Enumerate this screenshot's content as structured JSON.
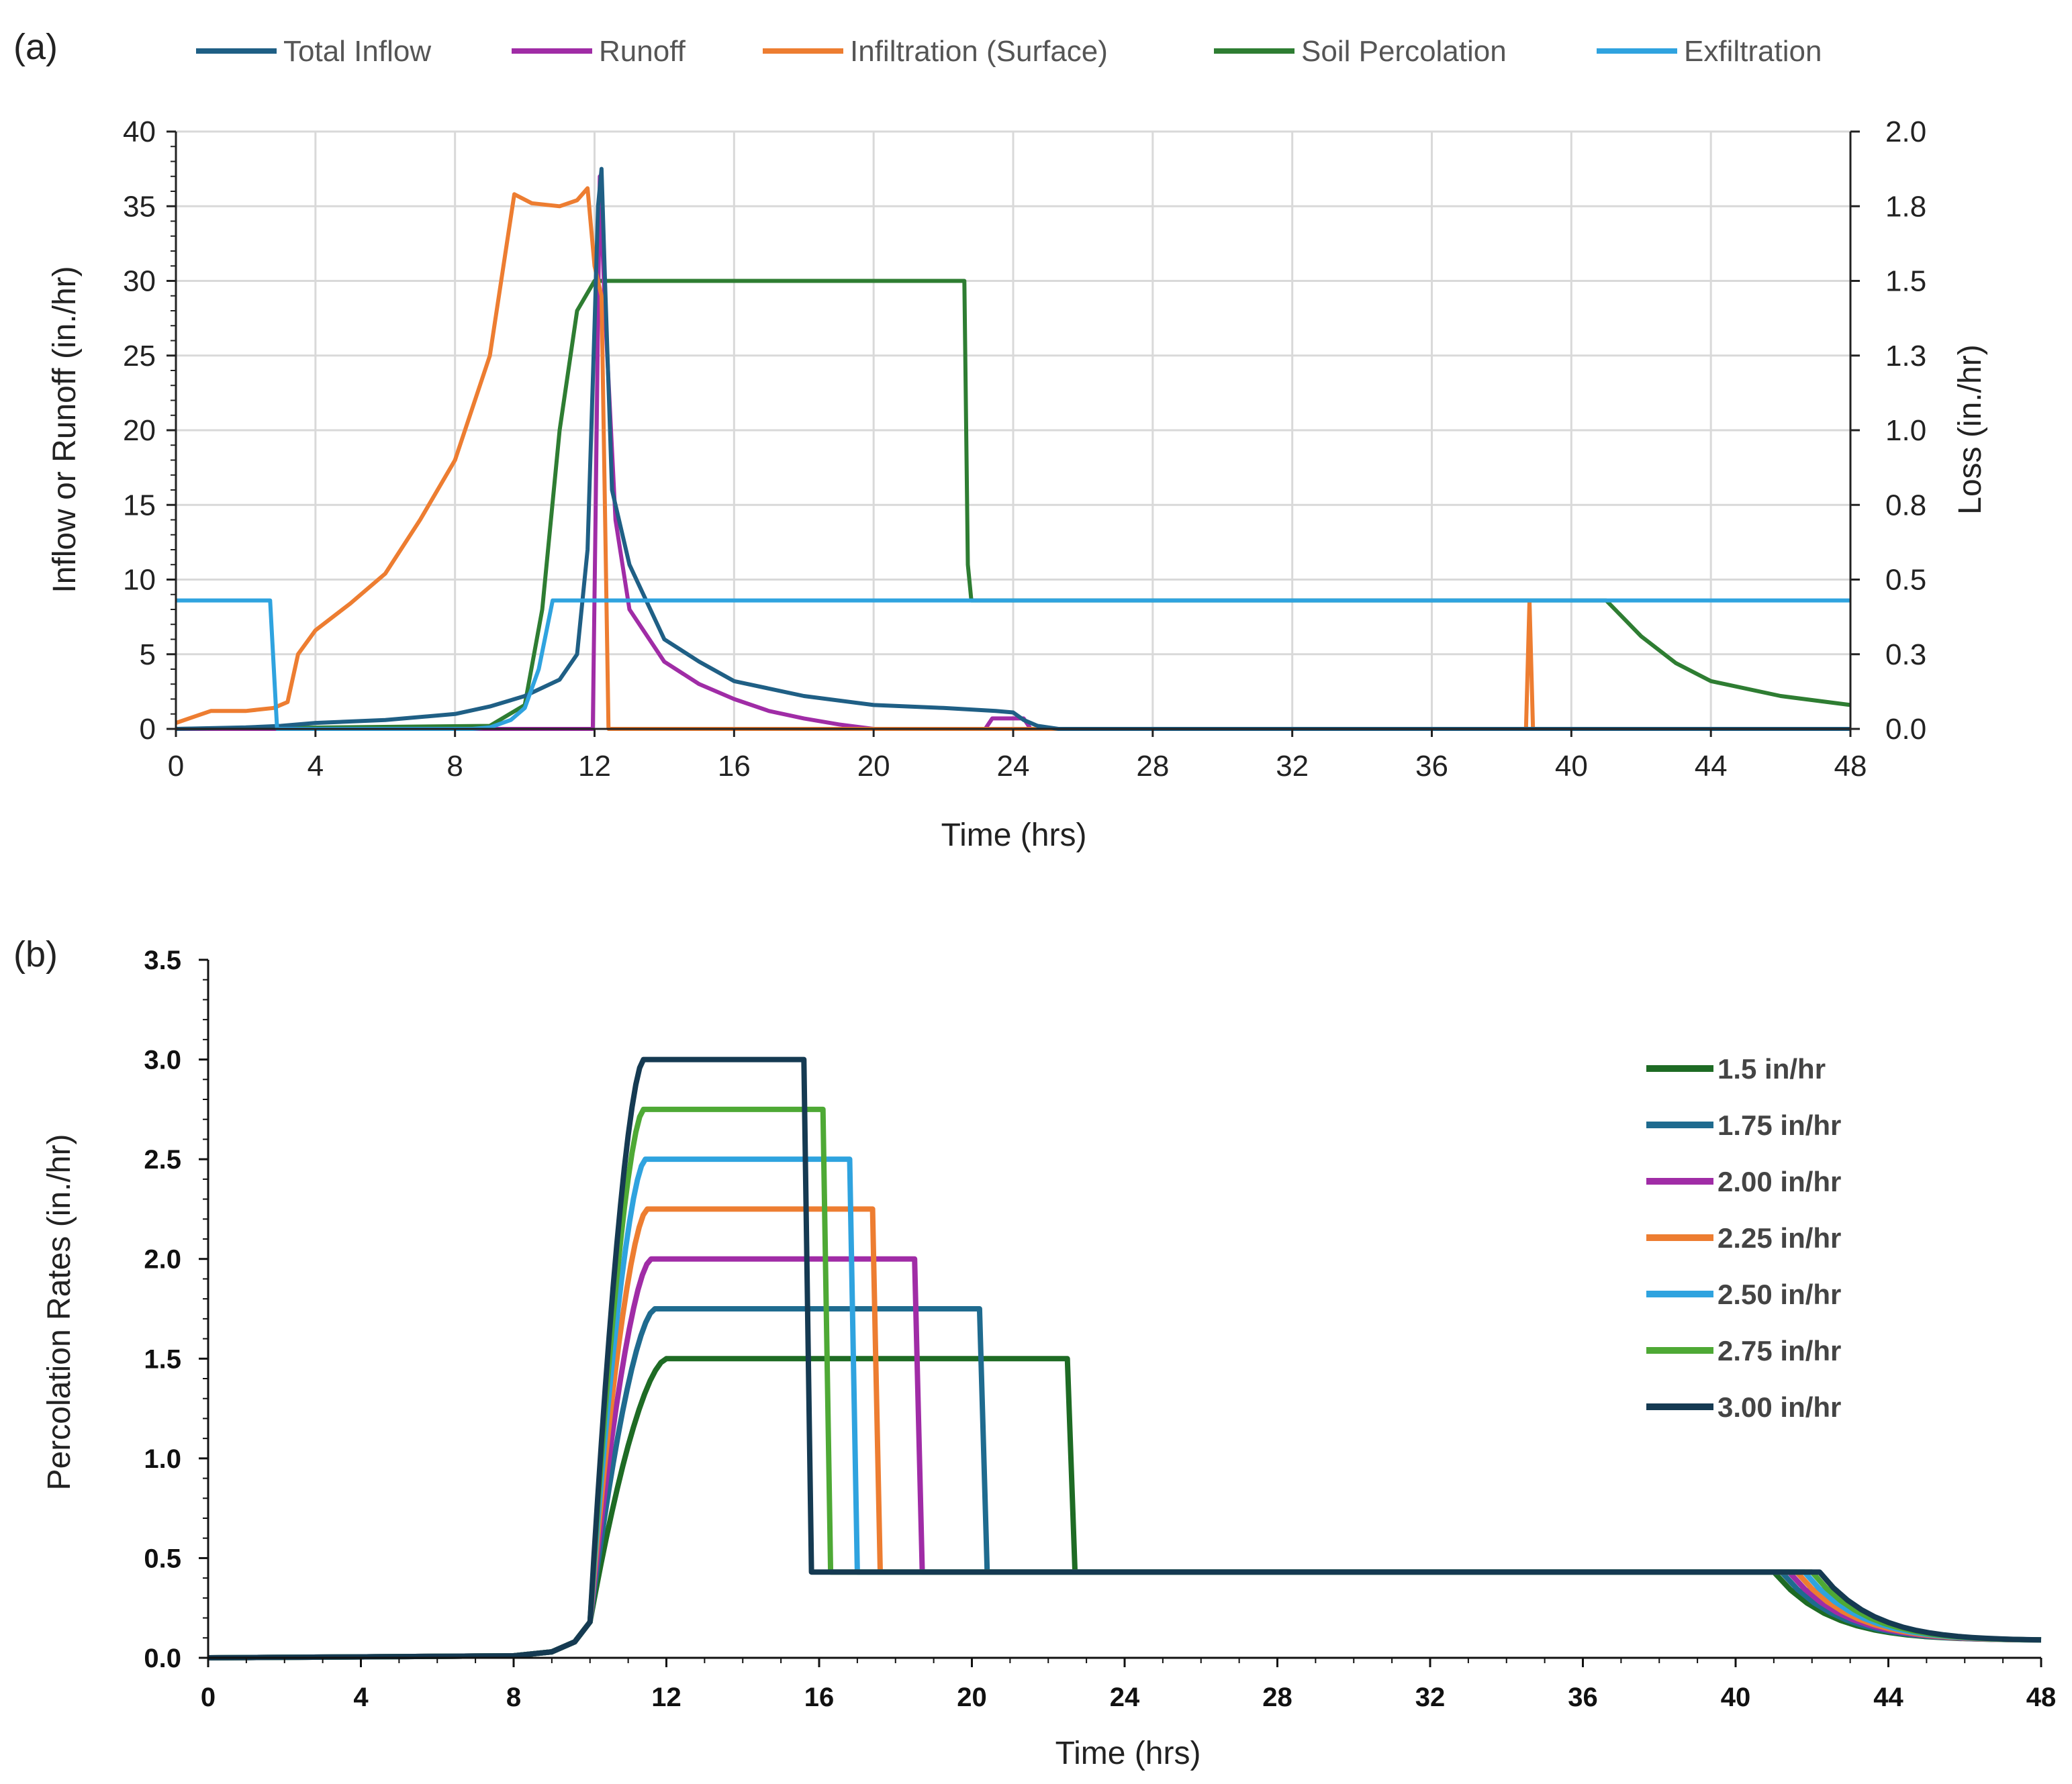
{
  "chart_data": [
    {
      "panel_label": "(a)",
      "type": "line",
      "xlabel": "Time (hrs)",
      "ylabel": "Inflow or Runoff (in./hr)",
      "y2label": "Loss (in./hr)",
      "xlim": [
        0,
        48
      ],
      "ylim": [
        0,
        40
      ],
      "y2lim": [
        0,
        2.0
      ],
      "grid": true,
      "legend_position": "top",
      "x_ticks": [
        "0",
        "4",
        "8",
        "12",
        "16",
        "20",
        "24",
        "28",
        "32",
        "36",
        "40",
        "44",
        "48"
      ],
      "y_ticks": [
        "0",
        "5",
        "10",
        "15",
        "20",
        "25",
        "30",
        "35",
        "40"
      ],
      "y2_ticks": [
        "0.0",
        "0.3",
        "0.5",
        "0.8",
        "1.0",
        "1.3",
        "1.5",
        "1.8",
        "2.0"
      ],
      "series": [
        {
          "name": "Total Inflow",
          "color": "#1f5f85",
          "axis": "left",
          "points": [
            [
              0,
              0
            ],
            [
              2,
              0.1
            ],
            [
              3,
              0.2
            ],
            [
              4,
              0.4
            ],
            [
              6,
              0.6
            ],
            [
              8,
              1.0
            ],
            [
              9,
              1.5
            ],
            [
              10,
              2.2
            ],
            [
              11,
              3.3
            ],
            [
              11.5,
              5.0
            ],
            [
              11.8,
              12
            ],
            [
              12,
              27
            ],
            [
              12.1,
              35
            ],
            [
              12.2,
              37.5
            ],
            [
              12.3,
              30
            ],
            [
              12.5,
              16
            ],
            [
              13,
              11
            ],
            [
              14,
              6
            ],
            [
              15,
              4.5
            ],
            [
              16,
              3.2
            ],
            [
              18,
              2.2
            ],
            [
              20,
              1.6
            ],
            [
              22,
              1.4
            ],
            [
              23.5,
              1.2
            ],
            [
              24,
              1.1
            ],
            [
              24.3,
              0.6
            ],
            [
              24.7,
              0.2
            ],
            [
              25.3,
              0
            ],
            [
              48,
              0
            ]
          ]
        },
        {
          "name": "Runoff",
          "color": "#a02ca6",
          "axis": "left",
          "points": [
            [
              0,
              0
            ],
            [
              11.95,
              0
            ],
            [
              12.05,
              18
            ],
            [
              12.15,
              37
            ],
            [
              12.3,
              28
            ],
            [
              12.6,
              14
            ],
            [
              13,
              8
            ],
            [
              14,
              4.5
            ],
            [
              15,
              3
            ],
            [
              16,
              2
            ],
            [
              17,
              1.2
            ],
            [
              18,
              0.7
            ],
            [
              19,
              0.3
            ],
            [
              20,
              0
            ],
            [
              23.2,
              0
            ],
            [
              23.4,
              0.7
            ],
            [
              24.3,
              0.7
            ],
            [
              24.5,
              0
            ],
            [
              48,
              0
            ]
          ]
        },
        {
          "name": "Infiltration (Surface)",
          "color": "#ed7d31",
          "axis": "right",
          "points": [
            [
              0,
              0.02
            ],
            [
              0.5,
              0.04
            ],
            [
              1,
              0.06
            ],
            [
              2,
              0.06
            ],
            [
              2.8,
              0.07
            ],
            [
              3.2,
              0.09
            ],
            [
              3.5,
              0.25
            ],
            [
              4,
              0.33
            ],
            [
              5,
              0.42
            ],
            [
              6,
              0.52
            ],
            [
              7,
              0.7
            ],
            [
              8,
              0.9
            ],
            [
              9,
              1.25
            ],
            [
              9.7,
              1.79
            ],
            [
              10.2,
              1.76
            ],
            [
              11,
              1.75
            ],
            [
              11.5,
              1.77
            ],
            [
              11.8,
              1.81
            ],
            [
              12,
              1.55
            ],
            [
              12.2,
              1.45
            ],
            [
              12.4,
              0
            ],
            [
              38.7,
              0
            ],
            [
              38.8,
              0.43
            ],
            [
              38.9,
              0
            ],
            [
              48,
              0
            ]
          ]
        },
        {
          "name": "Soil Percolation",
          "color": "#2e7d32",
          "axis": "right",
          "points": [
            [
              0,
              0
            ],
            [
              9,
              0.01
            ],
            [
              10,
              0.08
            ],
            [
              10.5,
              0.4
            ],
            [
              11,
              1.0
            ],
            [
              11.5,
              1.4
            ],
            [
              12,
              1.5
            ],
            [
              22.6,
              1.5
            ],
            [
              22.7,
              0.55
            ],
            [
              22.8,
              0.43
            ],
            [
              41,
              0.43
            ],
            [
              42,
              0.31
            ],
            [
              43,
              0.22
            ],
            [
              44,
              0.16
            ],
            [
              46,
              0.11
            ],
            [
              48,
              0.08
            ]
          ]
        },
        {
          "name": "Exfiltration",
          "color": "#2fa3df",
          "axis": "right",
          "points": [
            [
              0,
              0.43
            ],
            [
              2.7,
              0.43
            ],
            [
              2.9,
              0
            ],
            [
              8.5,
              0
            ],
            [
              9,
              0.005
            ],
            [
              9.6,
              0.03
            ],
            [
              10,
              0.07
            ],
            [
              10.4,
              0.2
            ],
            [
              10.8,
              0.43
            ],
            [
              48,
              0.43
            ]
          ]
        }
      ]
    },
    {
      "panel_label": "(b)",
      "type": "line",
      "xlabel": "Time (hrs)",
      "ylabel": "Percolation Rates (in./hr)",
      "xlim": [
        0,
        48
      ],
      "ylim": [
        0,
        3.5
      ],
      "grid": false,
      "legend_position": "right",
      "x_ticks": [
        "0",
        "4",
        "8",
        "12",
        "16",
        "20",
        "24",
        "28",
        "32",
        "36",
        "40",
        "44",
        "48"
      ],
      "y_ticks": [
        "0.0",
        "0.5",
        "1.0",
        "1.5",
        "2.0",
        "2.5",
        "3.0",
        "3.5"
      ],
      "series": [
        {
          "name": "1.5 in/hr",
          "color": "#1e6b24",
          "rate": 1.5,
          "rise_end": 12.0,
          "drop_start": 22.5,
          "drop_end": 22.7,
          "decay_start": 41.0
        },
        {
          "name": "1.75 in/hr",
          "color": "#1f6b8f",
          "rate": 1.75,
          "rise_end": 11.7,
          "drop_start": 20.2,
          "drop_end": 20.4,
          "decay_start": 41.2
        },
        {
          "name": "2.00 in/hr",
          "color": "#a02ca6",
          "rate": 2.0,
          "rise_end": 11.6,
          "drop_start": 18.5,
          "drop_end": 18.7,
          "decay_start": 41.4
        },
        {
          "name": "2.25 in/hr",
          "color": "#ed7d31",
          "rate": 2.25,
          "rise_end": 11.5,
          "drop_start": 17.4,
          "drop_end": 17.6,
          "decay_start": 41.6
        },
        {
          "name": "2.50 in/hr",
          "color": "#2fa3df",
          "rate": 2.5,
          "rise_end": 11.45,
          "drop_start": 16.8,
          "drop_end": 17.0,
          "decay_start": 41.8
        },
        {
          "name": "2.75 in/hr",
          "color": "#4ea935",
          "rate": 2.75,
          "rise_end": 11.4,
          "drop_start": 16.1,
          "drop_end": 16.3,
          "decay_start": 42.0
        },
        {
          "name": "3.00 in/hr",
          "color": "#153a52",
          "rate": 3.0,
          "rise_end": 11.4,
          "drop_start": 15.6,
          "drop_end": 15.8,
          "decay_start": 42.2
        }
      ],
      "baseline_value": 0.43,
      "end_value": 0.09
    }
  ]
}
